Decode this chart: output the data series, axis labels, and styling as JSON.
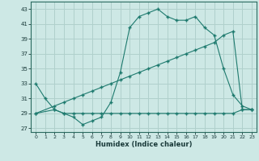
{
  "xlabel": "Humidex (Indice chaleur)",
  "background_color": "#cde8e5",
  "grid_color": "#b0d0cc",
  "line_color": "#1e7a6e",
  "xlim": [
    -0.5,
    23.5
  ],
  "ylim": [
    26.5,
    44
  ],
  "xticks": [
    0,
    1,
    2,
    3,
    4,
    5,
    6,
    7,
    8,
    9,
    10,
    11,
    12,
    13,
    14,
    15,
    16,
    17,
    18,
    19,
    20,
    21,
    22,
    23
  ],
  "yticks": [
    27,
    29,
    31,
    33,
    35,
    37,
    39,
    41,
    43
  ],
  "line1_x": [
    0,
    1,
    2,
    3,
    4,
    5,
    6,
    7,
    8,
    9,
    10,
    11,
    12,
    13,
    14,
    15,
    16,
    17,
    18,
    19,
    20,
    21,
    22,
    23
  ],
  "line1_y": [
    33,
    31,
    29.5,
    29,
    28.5,
    27.5,
    28,
    28.5,
    30.5,
    34.5,
    40.5,
    42,
    42.5,
    43,
    42,
    41.5,
    41.5,
    42,
    40.5,
    39.5,
    35,
    31.5,
    30,
    29.5
  ],
  "line2_x": [
    0,
    2,
    3,
    4,
    5,
    6,
    7,
    8,
    9,
    10,
    11,
    12,
    13,
    14,
    15,
    16,
    17,
    18,
    19,
    20,
    21,
    22,
    23
  ],
  "line2_y": [
    29,
    29.5,
    29,
    29,
    29,
    29,
    29,
    29,
    29,
    29,
    29,
    29,
    29,
    29,
    29,
    29,
    29,
    29,
    29,
    29,
    29,
    29.5,
    29.5
  ],
  "line3_x": [
    0,
    2,
    3,
    4,
    5,
    6,
    7,
    8,
    9,
    10,
    11,
    12,
    13,
    14,
    15,
    16,
    17,
    18,
    19,
    20,
    21,
    22,
    23
  ],
  "line3_y": [
    29,
    30,
    30.5,
    31,
    31.5,
    32,
    32.5,
    33,
    33.5,
    34,
    34.5,
    35,
    35.5,
    36,
    36.5,
    37,
    37.5,
    38,
    38.5,
    39.5,
    40,
    29.5,
    29.5
  ]
}
